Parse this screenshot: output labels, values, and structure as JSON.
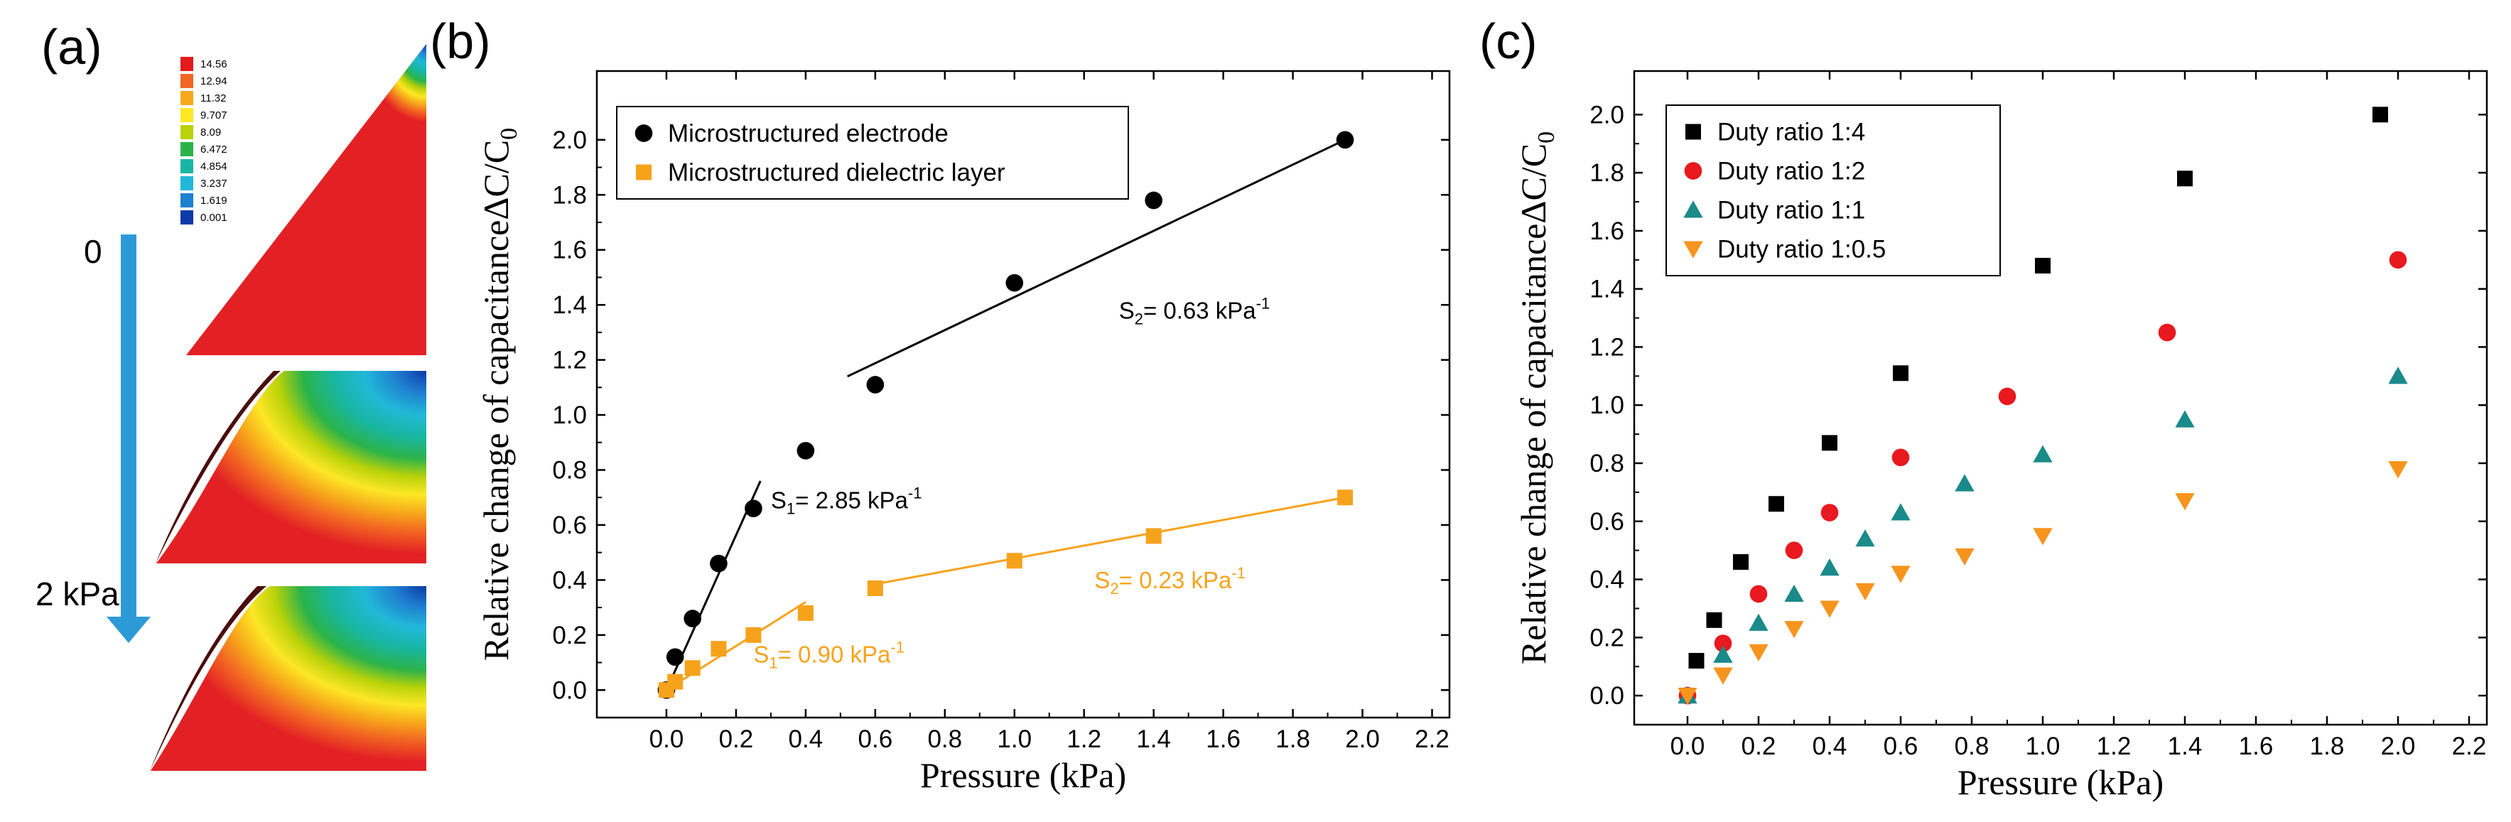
{
  "panel_labels": {
    "a": "(a)",
    "b": "(b)",
    "c": "(c)"
  },
  "panel_a": {
    "scale_values": [
      "14.56",
      "12.94",
      "11.32",
      "9.707",
      "8.09",
      "6.472",
      "4.854",
      "3.237",
      "1.619",
      "0.001"
    ],
    "scale_colors": [
      "#e41a1c",
      "#f26522",
      "#f7a81b",
      "#fde725",
      "#b9d20a",
      "#2bb34a",
      "#18b6a3",
      "#21b8d8",
      "#1f7fd0",
      "#0b3aa8"
    ],
    "arrow_start": "0",
    "arrow_end": "2 kPa",
    "field_color": "#e32124",
    "arrow_color": "#2d9ad8"
  },
  "chart_data": [
    {
      "type": "scatter",
      "title": "",
      "xlabel": "Pressure (kPa)",
      "ylabel": "Relative change of capacitanceΔC/C",
      "ylabel_sub": "0",
      "xlim": [
        -0.2,
        2.25
      ],
      "ylim": [
        -0.1,
        2.25
      ],
      "xticks": [
        "0.0",
        "0.2",
        "0.4",
        "0.6",
        "0.8",
        "1.0",
        "1.2",
        "1.4",
        "1.6",
        "1.8",
        "2.0",
        "2.2"
      ],
      "yticks": [
        "0.0",
        "0.2",
        "0.4",
        "0.6",
        "0.8",
        "1.0",
        "1.2",
        "1.4",
        "1.6",
        "1.8",
        "2.0"
      ],
      "legend_position": "top-left",
      "series": [
        {
          "name": "Microstructured electrode",
          "marker": "circle",
          "color": "#000000",
          "x": [
            0.0,
            0.025,
            0.075,
            0.15,
            0.25,
            0.4,
            0.6,
            1.0,
            1.4,
            1.95
          ],
          "y": [
            0.0,
            0.12,
            0.26,
            0.46,
            0.66,
            0.87,
            1.11,
            1.48,
            1.78,
            2.0
          ]
        },
        {
          "name": "Microstructured dielectric layer",
          "marker": "square",
          "color": "#f7a21b",
          "x": [
            0.0,
            0.025,
            0.075,
            0.15,
            0.25,
            0.4,
            0.6,
            1.0,
            1.4,
            1.95
          ],
          "y": [
            0.0,
            0.03,
            0.08,
            0.15,
            0.2,
            0.28,
            0.37,
            0.47,
            0.56,
            0.7
          ]
        }
      ],
      "fit_lines": [
        {
          "color": "#000000",
          "x": [
            0.0,
            0.27
          ],
          "y": [
            0.0,
            0.76
          ]
        },
        {
          "color": "#000000",
          "x": [
            0.52,
            1.95
          ],
          "y": [
            1.14,
            2.0
          ]
        },
        {
          "color": "#f7a21b",
          "x": [
            0.0,
            0.4
          ],
          "y": [
            0.0,
            0.32
          ]
        },
        {
          "color": "#f7a21b",
          "x": [
            0.6,
            1.95
          ],
          "y": [
            0.385,
            0.7
          ]
        }
      ],
      "annotations": [
        {
          "sym": "S",
          "sub": "1",
          "text": "= 2.85 kPa",
          "sup": "-1",
          "color": "#000000",
          "x": 0.3,
          "y": 0.66
        },
        {
          "sym": "S",
          "sub": "2",
          "text": "= 0.63 kPa",
          "sup": "-1",
          "color": "#000000",
          "x": 1.3,
          "y": 1.35
        },
        {
          "sym": "S",
          "sub": "1",
          "text": "= 0.90 kPa",
          "sup": "-1",
          "color": "#f7a21b",
          "x": 0.25,
          "y": 0.1
        },
        {
          "sym": "S",
          "sub": "2",
          "text": "= 0.23 kPa",
          "sup": "-1",
          "color": "#f7a21b",
          "x": 1.23,
          "y": 0.37
        }
      ]
    },
    {
      "type": "scatter",
      "title": "",
      "xlabel": "Pressure (kPa)",
      "ylabel": "Relative change of capacitanceΔC/C",
      "ylabel_sub": "0",
      "xlim": [
        -0.15,
        2.25
      ],
      "ylim": [
        -0.1,
        2.15
      ],
      "xticks": [
        "0.0",
        "0.2",
        "0.4",
        "0.6",
        "0.8",
        "1.0",
        "1.2",
        "1.4",
        "1.6",
        "1.8",
        "2.0",
        "2.2"
      ],
      "yticks": [
        "0.0",
        "0.2",
        "0.4",
        "0.6",
        "0.8",
        "1.0",
        "1.2",
        "1.4",
        "1.6",
        "1.8",
        "2.0"
      ],
      "legend_position": "top-left",
      "series": [
        {
          "name": "Duty ratio 1:4",
          "marker": "square",
          "color": "#000000",
          "x": [
            0.0,
            0.025,
            0.075,
            0.15,
            0.25,
            0.4,
            0.6,
            1.0,
            1.4,
            1.95
          ],
          "y": [
            0.0,
            0.12,
            0.26,
            0.46,
            0.66,
            0.87,
            1.11,
            1.48,
            1.78,
            2.0
          ]
        },
        {
          "name": "Duty ratio 1:2",
          "marker": "circle",
          "color": "#e8191f",
          "x": [
            0.0,
            0.1,
            0.2,
            0.3,
            0.4,
            0.6,
            0.9,
            1.35,
            2.0
          ],
          "y": [
            0.0,
            0.18,
            0.35,
            0.5,
            0.63,
            0.82,
            1.03,
            1.25,
            1.5
          ]
        },
        {
          "name": "Duty ratio 1:1",
          "marker": "triangle-up",
          "color": "#1a8a8a",
          "x": [
            0.0,
            0.1,
            0.2,
            0.3,
            0.4,
            0.5,
            0.6,
            0.78,
            1.0,
            1.4,
            2.0
          ],
          "y": [
            0.0,
            0.14,
            0.25,
            0.35,
            0.44,
            0.54,
            0.63,
            0.73,
            0.83,
            0.95,
            1.1
          ]
        },
        {
          "name": "Duty ratio 1:0.5",
          "marker": "triangle-down",
          "color": "#f7941d",
          "x": [
            0.0,
            0.1,
            0.2,
            0.3,
            0.4,
            0.5,
            0.6,
            0.78,
            1.0,
            1.4,
            2.0
          ],
          "y": [
            0.0,
            0.07,
            0.15,
            0.23,
            0.3,
            0.36,
            0.42,
            0.48,
            0.55,
            0.67,
            0.78
          ]
        }
      ]
    }
  ]
}
